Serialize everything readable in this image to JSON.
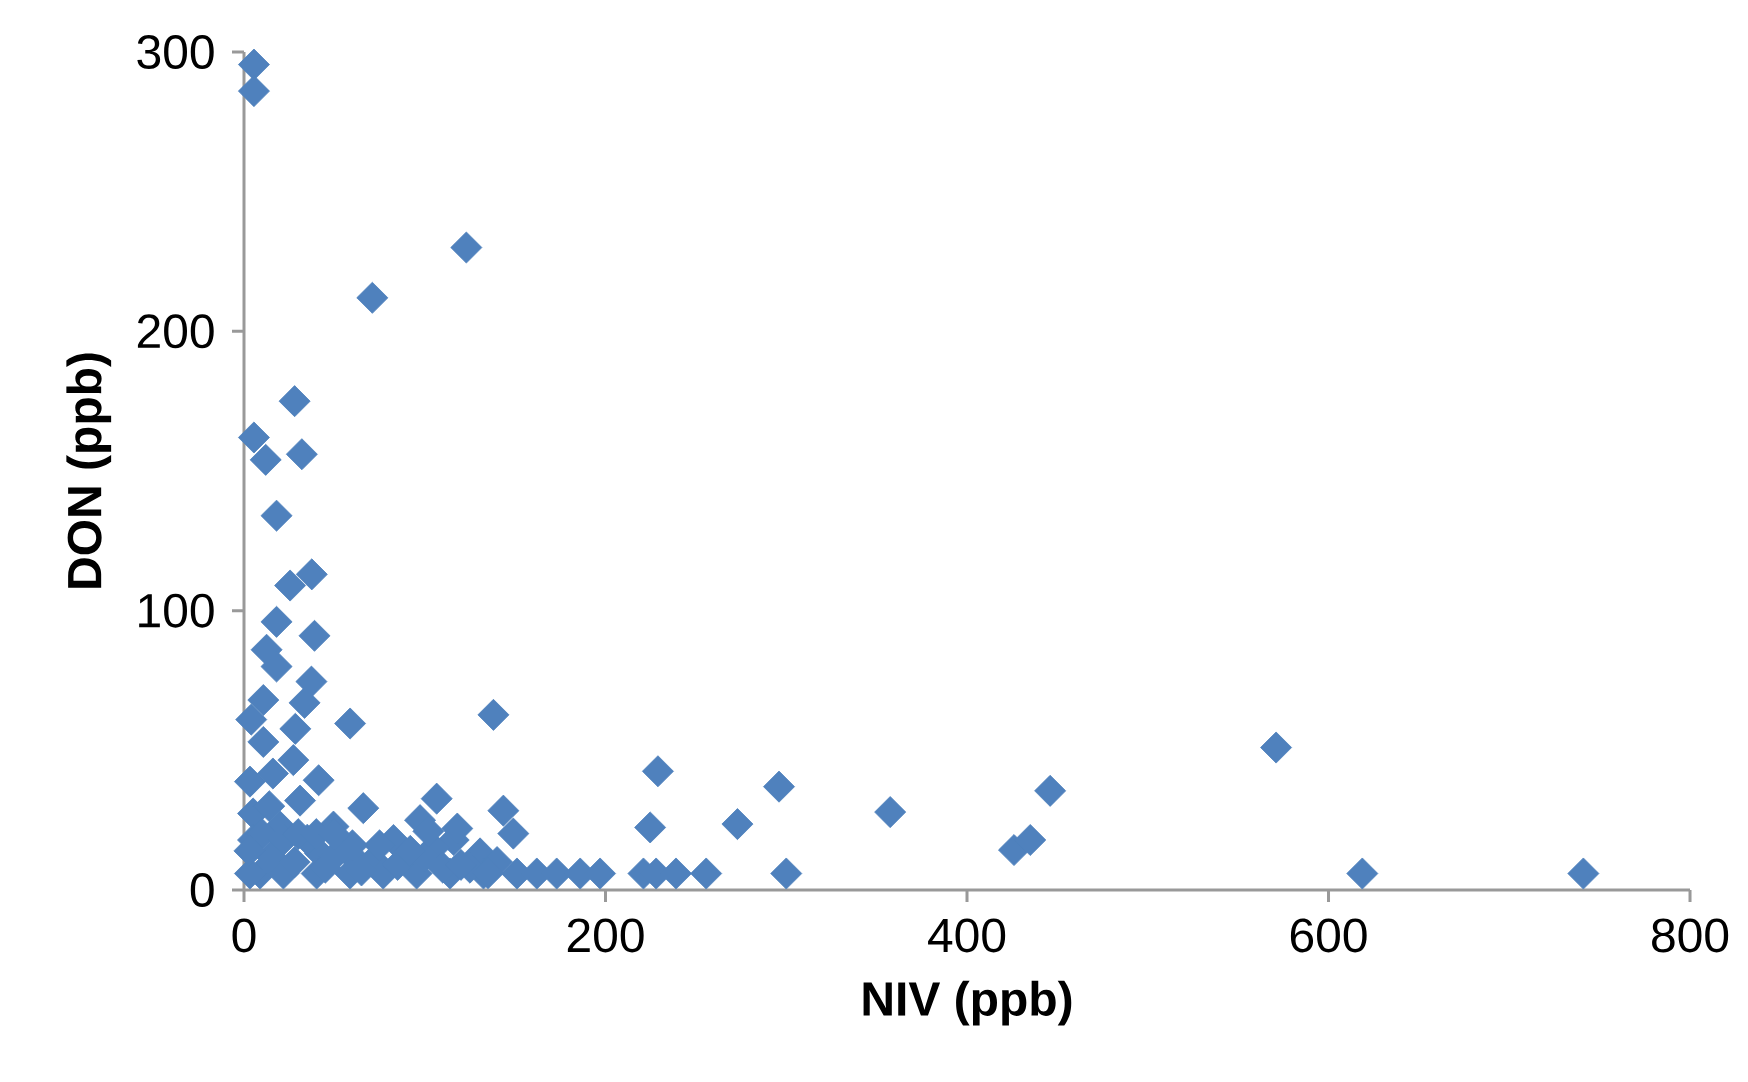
{
  "chart_data": {
    "type": "scatter",
    "xlabel": "NIV (ppb)",
    "ylabel": "DON (ppb)",
    "xlim": [
      0,
      800
    ],
    "ylim": [
      0,
      300
    ],
    "xticks": [
      0,
      200,
      400,
      600,
      800
    ],
    "yticks": [
      0,
      100,
      200,
      300
    ],
    "marker": "diamond",
    "grid": false,
    "series": [
      {
        "color": "#4f81bd",
        "x": [
          5.5,
          5.5,
          71,
          123,
          28,
          5.5,
          12,
          32,
          18,
          25.5,
          37.5,
          39,
          18,
          12.5,
          18,
          37.3,
          33.5,
          10.7,
          4,
          58.7,
          138,
          28.4,
          10.7,
          3.3,
          27.3,
          41.3,
          16,
          66,
          106.6,
          143.5,
          149,
          97.4,
          5,
          31,
          20,
          49.5,
          82.7,
          116,
          5,
          42,
          71.6,
          130.6,
          8.9,
          3.3,
          21.8,
          40.2,
          58.7,
          77,
          95.5,
          114,
          132.5,
          151,
          162,
          173,
          186,
          197,
          229,
          224.7,
          296,
          273,
          357.5,
          426,
          435,
          446,
          571,
          618.7,
          741,
          221,
          228,
          239,
          255.7,
          300,
          60,
          105,
          125,
          15,
          35,
          28,
          45,
          65,
          85,
          100,
          110,
          140,
          10,
          22,
          50,
          75,
          120,
          135,
          3,
          14,
          30,
          60,
          92,
          118,
          40,
          102,
          50
        ],
        "values": [
          295.5,
          286,
          212,
          230,
          175,
          162,
          154,
          156,
          134,
          109,
          113,
          91,
          96,
          86,
          80,
          74.6,
          67,
          68,
          61,
          59.6,
          62.7,
          57.7,
          53,
          38.8,
          46.5,
          39.3,
          41.7,
          29.3,
          32.7,
          28.4,
          20.2,
          25,
          27.4,
          32,
          22.7,
          22.7,
          17.9,
          17.9,
          17.9,
          13.1,
          10.7,
          13.1,
          5.9,
          5.9,
          5.9,
          5.9,
          5.9,
          5.9,
          5.9,
          5.9,
          5.9,
          5.9,
          5.9,
          5.9,
          5.9,
          5.9,
          42.5,
          22.4,
          37,
          23.6,
          27.9,
          14.3,
          17.9,
          35.5,
          51,
          5.9,
          5.9,
          5.9,
          5.9,
          5.9,
          5.9,
          5.9,
          12,
          15,
          8,
          12,
          18,
          10,
          8,
          7,
          9,
          12,
          8,
          10,
          20,
          18,
          12,
          16,
          9,
          6,
          14,
          30,
          20,
          16,
          14,
          22,
          20,
          21,
          20
        ]
      }
    ]
  }
}
